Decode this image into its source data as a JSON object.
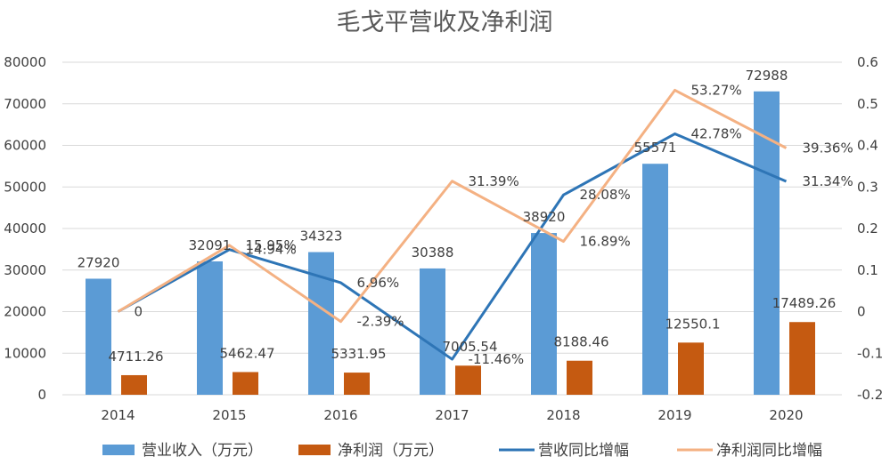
{
  "chart_data": {
    "type": "bar",
    "title": "毛戈平营收及净利润",
    "categories": [
      "2014",
      "2015",
      "2016",
      "2017",
      "2018",
      "2019",
      "2020"
    ],
    "y_left": {
      "ylim": [
        0,
        80000
      ],
      "ticks": [
        "0",
        "10000",
        "20000",
        "30000",
        "40000",
        "50000",
        "60000",
        "70000",
        "80000"
      ]
    },
    "y_right": {
      "ylim": [
        -0.2,
        0.6
      ],
      "ticks": [
        "-0.2",
        "-0.1",
        "0",
        "0.1",
        "0.2",
        "0.3",
        "0.4",
        "0.5",
        "0.6"
      ]
    },
    "grid": true,
    "legend_position": "bottom",
    "series": [
      {
        "name": "营业收入（万元）",
        "kind": "bar",
        "axis": "left",
        "color": "#5B9BD5",
        "values": [
          27920,
          32091,
          34323,
          30388,
          38920,
          55571,
          72988
        ],
        "labels": [
          "27920",
          "32091",
          "34323",
          "30388",
          "38920",
          "55571",
          "72988"
        ]
      },
      {
        "name": "净利润（万元）",
        "kind": "bar",
        "axis": "left",
        "color": "#C55A11",
        "values": [
          4711.26,
          5462.47,
          5331.95,
          7005.54,
          8188.46,
          12550.1,
          17489.26
        ],
        "labels": [
          "4711.26",
          "5462.47",
          "5331.95",
          "7005.54",
          "8188.46",
          "12550.1",
          "17489.26"
        ]
      },
      {
        "name": "营收同比增幅",
        "kind": "line",
        "axis": "right",
        "color": "#2E75B6",
        "values": [
          0,
          0.1494,
          0.0696,
          -0.1146,
          0.2808,
          0.4278,
          0.3134
        ],
        "labels": [
          "0",
          "14.94%",
          "6.96%",
          "-11.46%",
          "28.08%",
          "42.78%",
          "31.34%"
        ]
      },
      {
        "name": "净利润同比增幅",
        "kind": "line",
        "axis": "right",
        "color": "#F4B183",
        "values": [
          0,
          0.1595,
          -0.0239,
          0.3139,
          0.1689,
          0.5327,
          0.3936
        ],
        "labels": [
          "",
          "15.95%",
          "-2.39%",
          "31.39%",
          "16.89%",
          "53.27%",
          "39.36%"
        ]
      }
    ]
  }
}
